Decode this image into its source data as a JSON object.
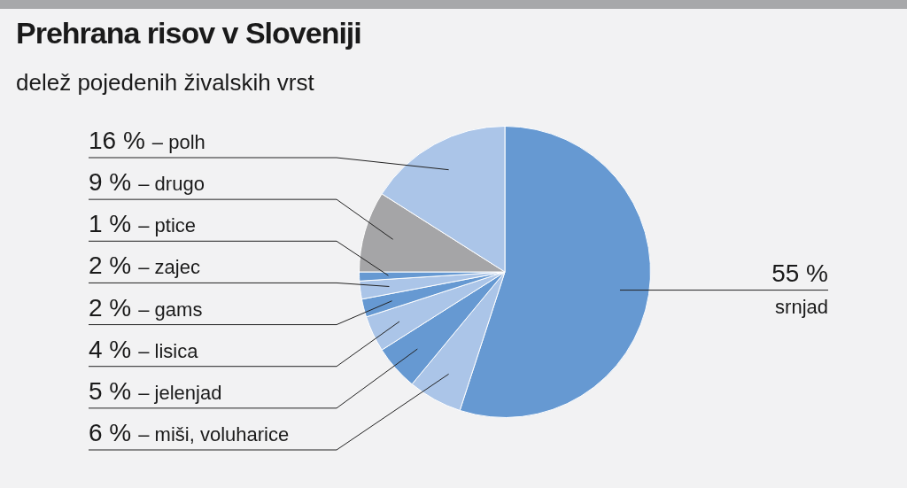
{
  "chart_data": {
    "type": "pie",
    "title": "Prehrana risov v Sloveniji",
    "subtitle": "delež pojedenih živalskih vrst",
    "categories": [
      "srnjad",
      "– miši, voluharice",
      "– jelenjad",
      "– lisica",
      "– gams",
      "– zajec",
      "– ptice",
      "– drugo",
      "– polh"
    ],
    "values": [
      55,
      6,
      5,
      4,
      2,
      2,
      1,
      9,
      16
    ],
    "value_labels": [
      "55 %",
      "6 %",
      "5 %",
      "4 %",
      "2 %",
      "2 %",
      "1 %",
      "9 %",
      "16 %"
    ],
    "colors": [
      "#6699d2",
      "#abc5e8",
      "#6699d2",
      "#abc5e8",
      "#6699d2",
      "#abc5e8",
      "#6699d2",
      "#a5a5a7",
      "#abc5e8"
    ],
    "legend": false
  }
}
